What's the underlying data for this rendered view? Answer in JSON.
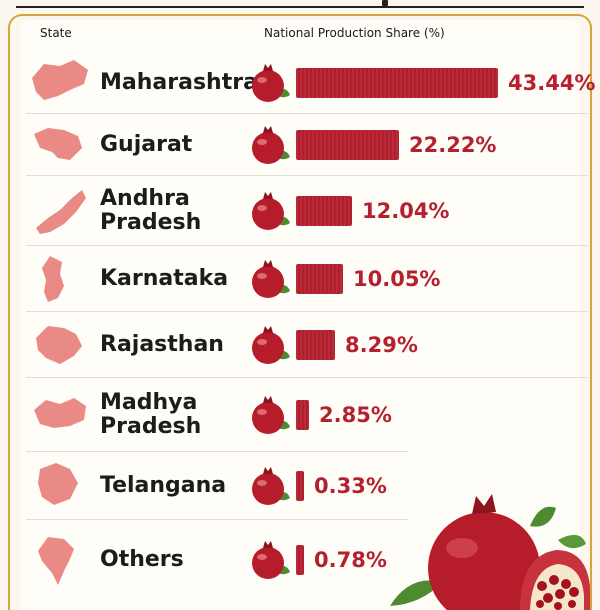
{
  "header": {
    "state_col": "State",
    "share_col": "National Production Share (%)"
  },
  "chart_data": {
    "type": "bar",
    "title": "",
    "xlabel": "National Production Share (%)",
    "ylabel": "State",
    "categories": [
      "Maharashtra",
      "Gujarat",
      "Andhra Pradesh",
      "Karnataka",
      "Rajasthan",
      "Madhya Pradesh",
      "Telangana",
      "Others"
    ],
    "values": [
      43.44,
      22.22,
      12.04,
      10.05,
      8.29,
      2.85,
      0.33,
      0.78
    ],
    "value_labels": [
      "43.44%",
      "22.22%",
      "12.04%",
      "10.05%",
      "8.29%",
      "2.85%",
      "0.33%",
      "0.78%"
    ],
    "display_names": [
      "Maharashtra",
      "Gujarat",
      "Andhra\nPradesh",
      "Karnataka",
      "Rajasthan",
      "Madhya\nPradesh",
      "Telangana",
      "Others"
    ],
    "xlim": [
      0,
      43.44
    ],
    "grid": false,
    "legend": "none"
  },
  "colors": {
    "bar": "#b5202e",
    "map": "#e98a86",
    "fruit": "#b71c2a",
    "leaf": "#4e8a2f"
  },
  "icons": {
    "state_shape": "state-map-icon",
    "fruit": "pomegranate-icon"
  }
}
